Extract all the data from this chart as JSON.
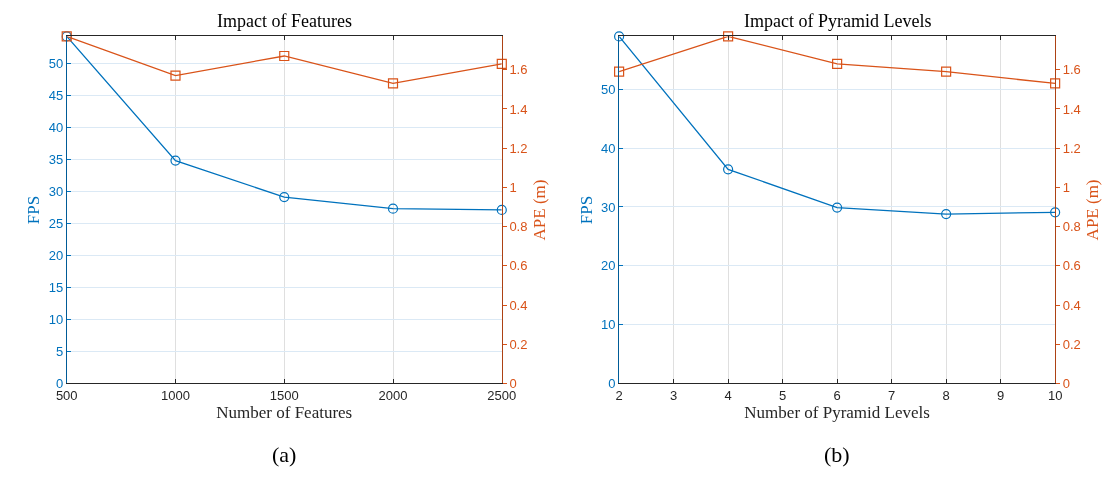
{
  "chart_data": [
    {
      "type": "line",
      "title": "Impact of Features",
      "xlabel": "Number of Features",
      "ylabel": "FPS",
      "y2label": "APE (m)",
      "annotations": [
        "(a)"
      ],
      "x": [
        500,
        1000,
        1500,
        2000,
        2500
      ],
      "xlim": [
        500,
        2500
      ],
      "xticks": [
        500,
        1000,
        1500,
        2000,
        2500
      ],
      "ylim": [
        0,
        54.2
      ],
      "yticks": [
        0,
        5,
        10,
        15,
        20,
        25,
        30,
        35,
        40,
        45,
        50
      ],
      "y2lim": [
        0,
        1.77
      ],
      "y2ticks": [
        0,
        0.2,
        0.4,
        0.6,
        0.8,
        1,
        1.2,
        1.4,
        1.6
      ],
      "grid": true,
      "series": [
        {
          "color": "#0072bd",
          "marker": "circle",
          "values": [
            54.2,
            34.8,
            29.1,
            27.3,
            27.1
          ]
        },
        {
          "color": "#d95319",
          "marker": "square",
          "axis": "y2",
          "values": [
            1.77,
            1.57,
            1.67,
            1.53,
            1.63
          ]
        }
      ]
    },
    {
      "type": "line",
      "title": "Impact of Pyramid Levels",
      "xlabel": "Number of Pyramid Levels",
      "ylabel": "FPS",
      "y2label": "APE (m)",
      "annotations": [
        "(b)"
      ],
      "x": [
        2,
        4,
        6,
        8,
        10
      ],
      "xlim": [
        2,
        10
      ],
      "xticks": [
        2,
        3,
        4,
        5,
        6,
        7,
        8,
        9,
        10
      ],
      "ylim": [
        0,
        59
      ],
      "yticks": [
        0,
        10,
        20,
        30,
        40,
        50
      ],
      "y2lim": [
        0,
        1.77
      ],
      "y2ticks": [
        0,
        0.2,
        0.4,
        0.6,
        0.8,
        1,
        1.2,
        1.4,
        1.6
      ],
      "grid": true,
      "series": [
        {
          "color": "#0072bd",
          "marker": "circle",
          "values": [
            59,
            36.4,
            29.9,
            28.8,
            29.1
          ]
        },
        {
          "color": "#d95319",
          "marker": "square",
          "axis": "y2",
          "values": [
            1.59,
            1.77,
            1.63,
            1.59,
            1.53
          ]
        }
      ]
    }
  ]
}
